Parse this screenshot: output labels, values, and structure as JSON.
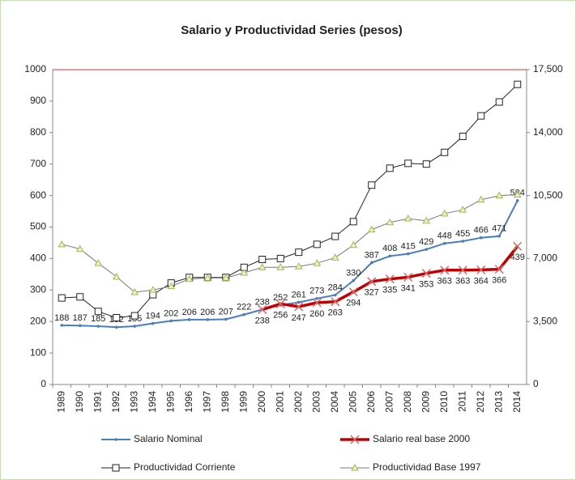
{
  "chart_data": {
    "type": "line",
    "title": "Salario y Productividad Series (pesos)",
    "categories": [
      "1989",
      "1990",
      "1991",
      "1992",
      "1993",
      "1994",
      "1995",
      "1996",
      "1997",
      "1998",
      "1999",
      "2000",
      "2001",
      "2002",
      "2003",
      "2004",
      "2005",
      "2006",
      "2007",
      "2008",
      "2009",
      "2010",
      "2011",
      "2012",
      "2013",
      "2014"
    ],
    "series": [
      {
        "name": "Salario Nominal",
        "color": "#4a7ebb",
        "marker": "dot",
        "labels": "above",
        "values": [
          188,
          187,
          185,
          182,
          185,
          194,
          202,
          206,
          206,
          207,
          222,
          238,
          252,
          261,
          273,
          284,
          330,
          387,
          408,
          415,
          429,
          448,
          455,
          466,
          471,
          584
        ]
      },
      {
        "name": "Salario real base 2000",
        "color": "#c00000",
        "marker": "x",
        "labels": "below",
        "values": [
          null,
          null,
          null,
          null,
          null,
          null,
          null,
          null,
          null,
          null,
          null,
          238,
          256,
          247,
          260,
          263,
          294,
          327,
          335,
          341,
          353,
          363,
          363,
          364,
          366,
          439
        ]
      },
      {
        "name": "Productividad Corriente",
        "color": "#222222",
        "marker": "square",
        "axis": "y2",
        "values": [
          4810,
          4870,
          4060,
          3710,
          3820,
          4990,
          5640,
          5950,
          5950,
          5950,
          6510,
          6950,
          7000,
          7350,
          7790,
          8230,
          9050,
          11080,
          12020,
          12290,
          12250,
          12900,
          13790,
          14930,
          15700,
          16680
        ]
      },
      {
        "name": "Productividad Base 1997",
        "color": "#777777",
        "marker": "triangle",
        "axis": "y2",
        "values": [
          7790,
          7530,
          6740,
          5990,
          5130,
          5250,
          5460,
          5860,
          5920,
          5920,
          6210,
          6510,
          6510,
          6560,
          6740,
          7050,
          7750,
          8610,
          9010,
          9220,
          9100,
          9500,
          9710,
          10270,
          10500,
          10550
        ]
      }
    ],
    "ylim": [
      0,
      1000
    ],
    "yticks": [
      0,
      100,
      200,
      300,
      400,
      500,
      600,
      700,
      800,
      900,
      1000
    ],
    "y2lim": [
      0,
      17500
    ],
    "y2ticks": [
      0,
      {
        "value": 3500,
        "label": "3,500"
      },
      {
        "value": 7000,
        "label": "7,000"
      },
      {
        "value": 10500,
        "label": "10,500"
      },
      {
        "value": 14000,
        "label": "14,000"
      },
      {
        "value": 17500,
        "label": "17,500"
      }
    ],
    "legend": "bottom"
  }
}
